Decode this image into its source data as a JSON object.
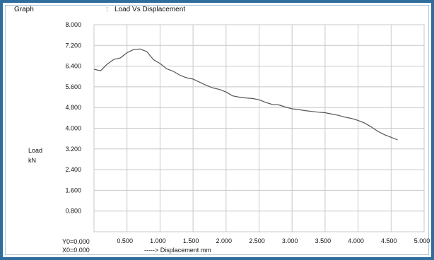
{
  "header": {
    "graph_label": "Graph",
    "separator": ":",
    "title": "Load Vs Displacement"
  },
  "y_axis": {
    "label_line1": "Load",
    "label_line2": "kN"
  },
  "footer": {
    "y0": "Y0=0.000",
    "x0": "X0=0.000",
    "x_axis_label": "-----> Displacement  mm"
  },
  "colors": {
    "frame": "#2f6e9c",
    "grid": "#c8c8c8",
    "line": "#555555"
  },
  "chart_data": {
    "type": "line",
    "title": "Load Vs Displacement",
    "xlabel": "Displacement  mm",
    "ylabel": "Load kN",
    "xlim": [
      0,
      5.0
    ],
    "ylim": [
      0,
      8.0
    ],
    "grid": true,
    "x_ticks": [
      "0.500",
      "1.000",
      "1.500",
      "2.000",
      "2.500",
      "3.000",
      "3.500",
      "4.000",
      "4.500",
      "5.000"
    ],
    "y_ticks": [
      "0.800",
      "1.600",
      "2.400",
      "3.200",
      "4.000",
      "4.800",
      "5.600",
      "6.400",
      "7.200",
      "8.000"
    ],
    "series": [
      {
        "x": [
          0.0,
          0.1,
          0.2,
          0.3,
          0.4,
          0.5,
          0.6,
          0.7,
          0.8,
          0.9,
          1.0,
          1.1,
          1.2,
          1.3,
          1.4,
          1.5,
          1.6,
          1.7,
          1.8,
          1.9,
          2.0,
          2.1,
          2.2,
          2.3,
          2.4,
          2.5,
          2.6,
          2.7,
          2.8,
          2.9,
          3.0,
          3.1,
          3.2,
          3.3,
          3.4,
          3.5,
          3.6,
          3.7,
          3.8,
          3.9,
          4.0,
          4.1,
          4.2,
          4.3,
          4.4,
          4.5,
          4.6
        ],
        "y": [
          6.28,
          6.22,
          6.48,
          6.66,
          6.72,
          6.92,
          7.04,
          7.06,
          6.96,
          6.65,
          6.5,
          6.3,
          6.2,
          6.05,
          5.95,
          5.9,
          5.78,
          5.66,
          5.56,
          5.5,
          5.4,
          5.25,
          5.2,
          5.17,
          5.15,
          5.1,
          5.0,
          4.92,
          4.9,
          4.82,
          4.75,
          4.72,
          4.68,
          4.65,
          4.62,
          4.6,
          4.55,
          4.5,
          4.43,
          4.38,
          4.3,
          4.2,
          4.05,
          3.88,
          3.75,
          3.65,
          3.55
        ]
      }
    ]
  }
}
